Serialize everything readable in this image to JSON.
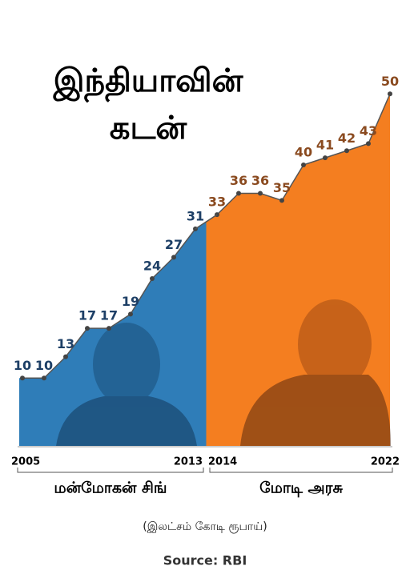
{
  "chart_data": {
    "type": "area",
    "title": [
      "இந்தியாவின்",
      "கடன்"
    ],
    "subtitle": "(இலட்சம் கோடி ரூபாய்)",
    "source": "Source: RBI",
    "categories": [
      "2005",
      null,
      null,
      null,
      null,
      null,
      null,
      null,
      "2013",
      "2014",
      null,
      null,
      null,
      null,
      null,
      null,
      null,
      "2022"
    ],
    "series": [
      {
        "name": "மன்மோகன் சிங்",
        "color": "#2f7db8",
        "label_color": "#1d3f66",
        "values": [
          10,
          10,
          13,
          17,
          17,
          19,
          24,
          27,
          31,
          null,
          null,
          null,
          null,
          null,
          null,
          null,
          null,
          null
        ]
      },
      {
        "name": "மோடி அரசு",
        "color": "#f47e20",
        "label_color": "#8a4a1f",
        "values": [
          null,
          null,
          null,
          null,
          null,
          null,
          null,
          null,
          null,
          33,
          36,
          36,
          35,
          40,
          41,
          42,
          43,
          50
        ]
      }
    ]
  }
}
